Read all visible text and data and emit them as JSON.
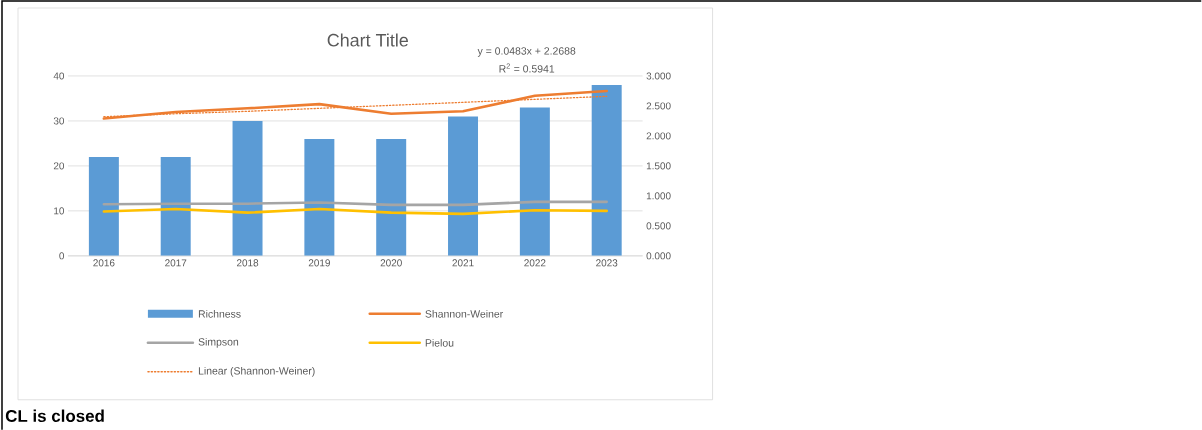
{
  "chart_data": {
    "type": "bar",
    "title": "Chart Title",
    "categories": [
      "2016",
      "2017",
      "2018",
      "2019",
      "2020",
      "2021",
      "2022",
      "2023"
    ],
    "series": [
      {
        "name": "Richness",
        "color": "#5b9bd5",
        "values": [
          22,
          22,
          30,
          26,
          26,
          31,
          33,
          38
        ]
      },
      {
        "name": "Shannon-Weiner",
        "type": "line",
        "axis": "y2",
        "color": "#ed7d31",
        "values": [
          2.29,
          2.4,
          2.46,
          2.53,
          2.37,
          2.41,
          2.67,
          2.75
        ]
      },
      {
        "name": "Simpson",
        "type": "line",
        "axis": "y2",
        "color": "#a5a5a5",
        "values": [
          0.86,
          0.87,
          0.87,
          0.89,
          0.85,
          0.85,
          0.9,
          0.9
        ]
      },
      {
        "name": "Pielou",
        "type": "line",
        "axis": "y2",
        "color": "#ffc000",
        "values": [
          0.74,
          0.78,
          0.72,
          0.78,
          0.72,
          0.7,
          0.76,
          0.75
        ]
      },
      {
        "name": "Linear (Shannon-Weiner)",
        "type": "line",
        "axis": "y2",
        "line_style": "dotted",
        "color": "#ed7d31",
        "values": [
          2.32,
          2.37,
          2.41,
          2.46,
          2.51,
          2.56,
          2.61,
          2.66
        ]
      }
    ],
    "ylim": [
      0,
      40
    ],
    "yticks": [
      0,
      10,
      20,
      30,
      40
    ],
    "y2lim": [
      0,
      3
    ],
    "y2ticks": [
      {
        "value": 0,
        "label": "0.000"
      },
      {
        "value": 0.5,
        "label": "0.500"
      },
      {
        "value": 1,
        "label": "1.000"
      },
      {
        "value": 1.5,
        "label": "1.500"
      },
      {
        "value": 2,
        "label": "2.000"
      },
      {
        "value": 2.5,
        "label": "2.500"
      },
      {
        "value": 3,
        "label": "3.000"
      }
    ],
    "annotations": [
      "y = 0.0483x + 2.2688",
      "R$^{2}$ = 0.5941",
      "CL is closed"
    ],
    "grid": "y",
    "legend": "bottom",
    "marker": "none"
  }
}
